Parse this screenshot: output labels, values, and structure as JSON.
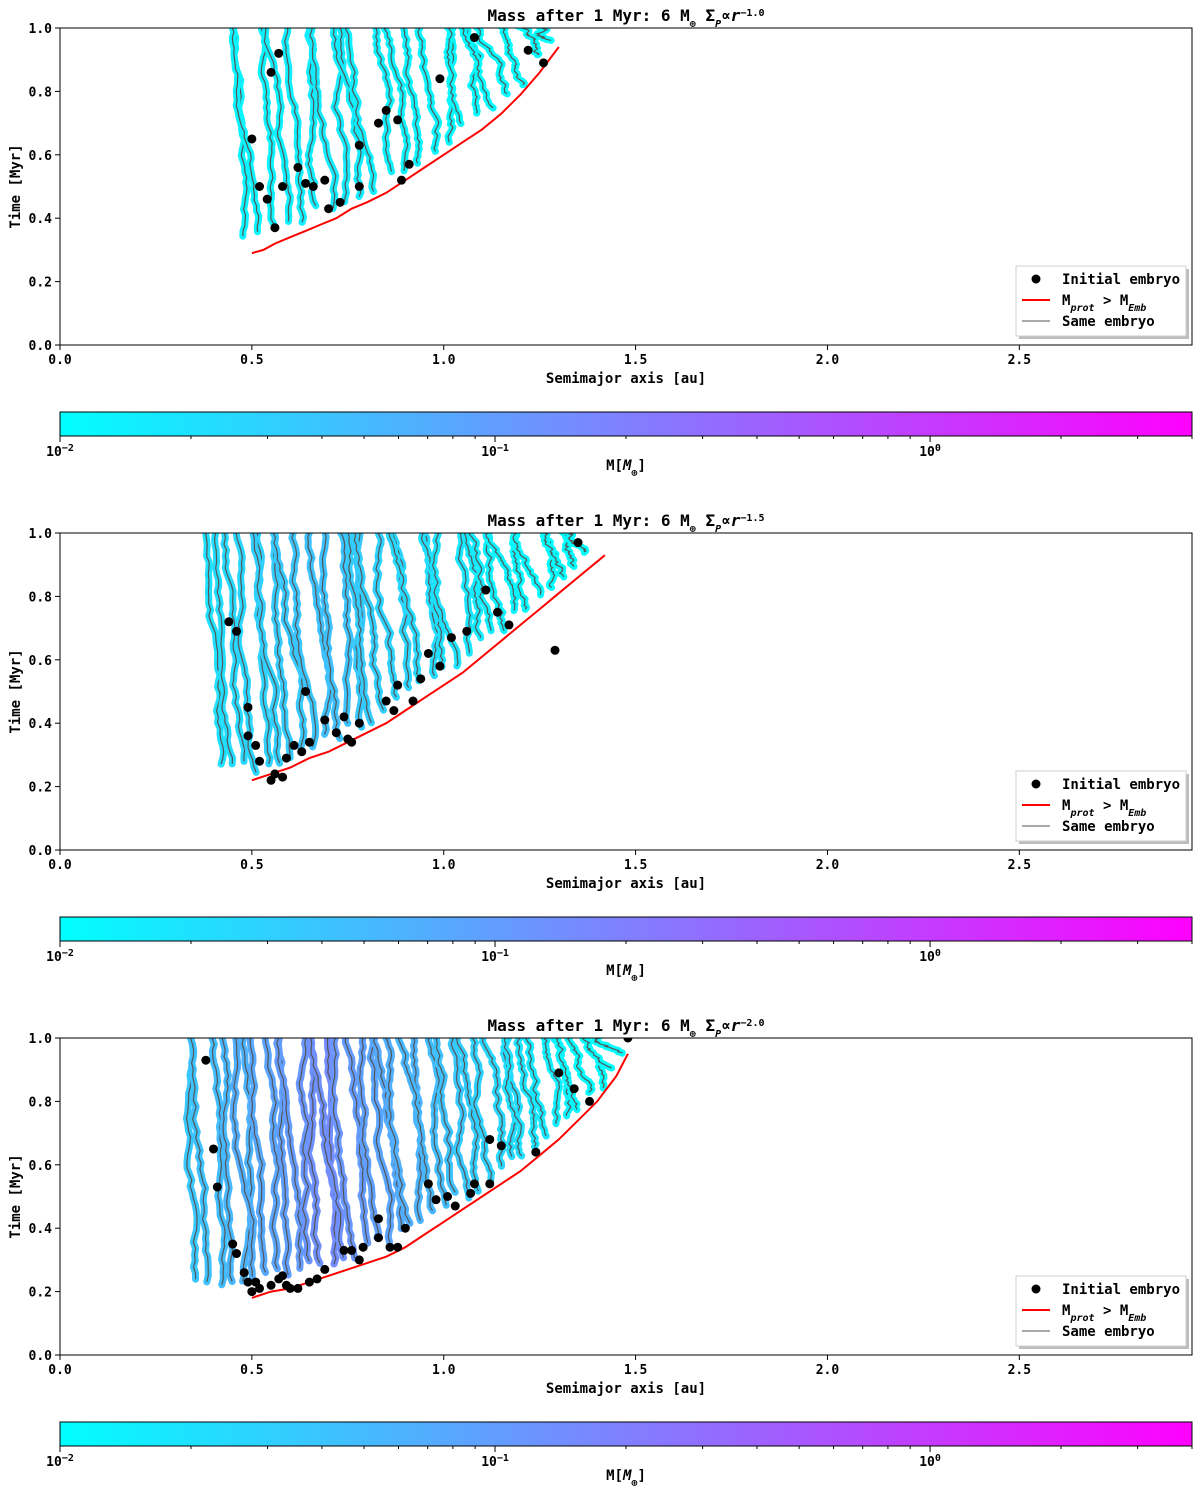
{
  "colors": {
    "cmap_low": "#00ffff",
    "cmap_high": "#ff00ff",
    "threshold_line": "#ff0000",
    "embryo_marker": "#000000",
    "same_embryo_line": "#aaaaaa",
    "track_core": "#555555"
  },
  "chart_data": [
    {
      "type": "scatter",
      "title_main": "Mass after 1 Myr: 6 M",
      "title_sub_symbol": "⊕",
      "title_sigma": "Σ",
      "title_sigma_sub": "P",
      "title_propto": "∝",
      "title_r": "r",
      "title_exp": "−1.0",
      "xlabel": "Semimajor axis [au]",
      "ylabel": "Time [Myr]",
      "xlim": [
        0.0,
        2.95
      ],
      "ylim": [
        0.0,
        1.0
      ],
      "xticks": [
        "0.0",
        "0.5",
        "1.0",
        "1.5",
        "2.0",
        "2.5"
      ],
      "yticks": [
        "0.0",
        "0.2",
        "0.4",
        "0.6",
        "0.8",
        "1.0"
      ],
      "legend": {
        "initial_embryo": "Initial embryo",
        "mprot_main": "M",
        "mprot_sub": "prot",
        "mprot_gt": " > M",
        "memb_sub": "Emb",
        "same_embryo": "Same embryo"
      },
      "threshold_curve": {
        "x": [
          0.5,
          0.53,
          0.56,
          0.6,
          0.64,
          0.68,
          0.72,
          0.76,
          0.8,
          0.85,
          0.9,
          0.95,
          1.0,
          1.05,
          1.1,
          1.15,
          1.2,
          1.25,
          1.3
        ],
        "y": [
          0.29,
          0.3,
          0.32,
          0.34,
          0.36,
          0.38,
          0.4,
          0.43,
          0.45,
          0.48,
          0.52,
          0.56,
          0.6,
          0.64,
          0.68,
          0.73,
          0.79,
          0.86,
          0.94
        ]
      },
      "embryos": [
        {
          "a": 0.5,
          "t": 0.65
        },
        {
          "a": 0.52,
          "t": 0.5
        },
        {
          "a": 0.54,
          "t": 0.46
        },
        {
          "a": 0.55,
          "t": 0.86
        },
        {
          "a": 0.56,
          "t": 0.37
        },
        {
          "a": 0.57,
          "t": 0.92
        },
        {
          "a": 0.58,
          "t": 0.5
        },
        {
          "a": 0.62,
          "t": 0.56
        },
        {
          "a": 0.64,
          "t": 0.51
        },
        {
          "a": 0.66,
          "t": 0.5
        },
        {
          "a": 0.69,
          "t": 0.52
        },
        {
          "a": 0.7,
          "t": 0.43
        },
        {
          "a": 0.73,
          "t": 0.45
        },
        {
          "a": 0.78,
          "t": 0.5
        },
        {
          "a": 0.78,
          "t": 0.63
        },
        {
          "a": 0.83,
          "t": 0.7
        },
        {
          "a": 0.85,
          "t": 0.74
        },
        {
          "a": 0.88,
          "t": 0.71
        },
        {
          "a": 0.89,
          "t": 0.52
        },
        {
          "a": 0.91,
          "t": 0.57
        },
        {
          "a": 0.99,
          "t": 0.84
        },
        {
          "a": 1.08,
          "t": 0.97
        },
        {
          "a": 1.22,
          "t": 0.93
        },
        {
          "a": 1.26,
          "t": 0.89
        }
      ],
      "colorbar": {
        "label_main": "M[",
        "label_sym": "M",
        "label_sub": "⊕",
        "label_close": "]",
        "scale": "log",
        "min": 0.01,
        "max": 4.0,
        "ticks": [
          {
            "base": "10",
            "exp": "−2",
            "value": 0.01
          },
          {
            "base": "10",
            "exp": "−1",
            "value": 0.1
          },
          {
            "base": "10",
            "exp": "0",
            "value": 1.0
          }
        ]
      }
    },
    {
      "type": "scatter",
      "title_main": "Mass after 1 Myr: 6 M",
      "title_sub_symbol": "⊕",
      "title_sigma": "Σ",
      "title_sigma_sub": "P",
      "title_propto": "∝",
      "title_r": "r",
      "title_exp": "−1.5",
      "xlabel": "Semimajor axis [au]",
      "ylabel": "Time [Myr]",
      "xlim": [
        0.0,
        2.95
      ],
      "ylim": [
        0.0,
        1.0
      ],
      "xticks": [
        "0.0",
        "0.5",
        "1.0",
        "1.5",
        "2.0",
        "2.5"
      ],
      "yticks": [
        "0.0",
        "0.2",
        "0.4",
        "0.6",
        "0.8",
        "1.0"
      ],
      "legend": {
        "initial_embryo": "Initial embryo",
        "mprot_main": "M",
        "mprot_sub": "prot",
        "mprot_gt": " > M",
        "memb_sub": "Emb",
        "same_embryo": "Same embryo"
      },
      "threshold_curve": {
        "x": [
          0.5,
          0.55,
          0.6,
          0.65,
          0.7,
          0.75,
          0.8,
          0.85,
          0.9,
          0.95,
          1.0,
          1.05,
          1.1,
          1.15,
          1.2,
          1.25,
          1.3,
          1.35,
          1.42
        ],
        "y": [
          0.22,
          0.24,
          0.26,
          0.29,
          0.31,
          0.34,
          0.37,
          0.4,
          0.44,
          0.48,
          0.52,
          0.56,
          0.61,
          0.66,
          0.71,
          0.76,
          0.81,
          0.86,
          0.93
        ]
      },
      "embryos": [
        {
          "a": 0.44,
          "t": 0.72
        },
        {
          "a": 0.46,
          "t": 0.69
        },
        {
          "a": 0.49,
          "t": 0.45
        },
        {
          "a": 0.49,
          "t": 0.36
        },
        {
          "a": 0.51,
          "t": 0.33
        },
        {
          "a": 0.52,
          "t": 0.28
        },
        {
          "a": 0.55,
          "t": 0.22
        },
        {
          "a": 0.56,
          "t": 0.24
        },
        {
          "a": 0.58,
          "t": 0.23
        },
        {
          "a": 0.59,
          "t": 0.29
        },
        {
          "a": 0.61,
          "t": 0.33
        },
        {
          "a": 0.63,
          "t": 0.31
        },
        {
          "a": 0.64,
          "t": 0.5
        },
        {
          "a": 0.65,
          "t": 0.34
        },
        {
          "a": 0.69,
          "t": 0.41
        },
        {
          "a": 0.72,
          "t": 0.37
        },
        {
          "a": 0.74,
          "t": 0.42
        },
        {
          "a": 0.75,
          "t": 0.35
        },
        {
          "a": 0.76,
          "t": 0.34
        },
        {
          "a": 0.78,
          "t": 0.4
        },
        {
          "a": 0.85,
          "t": 0.47
        },
        {
          "a": 0.87,
          "t": 0.44
        },
        {
          "a": 0.88,
          "t": 0.52
        },
        {
          "a": 0.92,
          "t": 0.47
        },
        {
          "a": 0.94,
          "t": 0.54
        },
        {
          "a": 0.96,
          "t": 0.62
        },
        {
          "a": 0.99,
          "t": 0.58
        },
        {
          "a": 1.02,
          "t": 0.67
        },
        {
          "a": 1.06,
          "t": 0.69
        },
        {
          "a": 1.11,
          "t": 0.82
        },
        {
          "a": 1.14,
          "t": 0.75
        },
        {
          "a": 1.17,
          "t": 0.71
        },
        {
          "a": 1.29,
          "t": 0.63
        },
        {
          "a": 1.35,
          "t": 0.97
        }
      ],
      "colorbar": {
        "label_main": "M[",
        "label_sym": "M",
        "label_sub": "⊕",
        "label_close": "]",
        "scale": "log",
        "min": 0.01,
        "max": 4.0,
        "ticks": [
          {
            "base": "10",
            "exp": "−2",
            "value": 0.01
          },
          {
            "base": "10",
            "exp": "−1",
            "value": 0.1
          },
          {
            "base": "10",
            "exp": "0",
            "value": 1.0
          }
        ]
      }
    },
    {
      "type": "scatter",
      "title_main": "Mass after 1 Myr: 6 M",
      "title_sub_symbol": "⊕",
      "title_sigma": "Σ",
      "title_sigma_sub": "P",
      "title_propto": "∝",
      "title_r": "r",
      "title_exp": "−2.0",
      "xlabel": "Semimajor axis [au]",
      "ylabel": "Time [Myr]",
      "xlim": [
        0.0,
        2.95
      ],
      "ylim": [
        0.0,
        1.0
      ],
      "xticks": [
        "0.0",
        "0.5",
        "1.0",
        "1.5",
        "2.0",
        "2.5"
      ],
      "yticks": [
        "0.0",
        "0.2",
        "0.4",
        "0.6",
        "0.8",
        "1.0"
      ],
      "legend": {
        "initial_embryo": "Initial embryo",
        "mprot_main": "M",
        "mprot_sub": "prot",
        "mprot_gt": " > M",
        "memb_sub": "Emb",
        "same_embryo": "Same embryo"
      },
      "threshold_curve": {
        "x": [
          0.5,
          0.55,
          0.6,
          0.65,
          0.7,
          0.75,
          0.8,
          0.85,
          0.9,
          0.95,
          1.0,
          1.05,
          1.1,
          1.15,
          1.2,
          1.25,
          1.3,
          1.35,
          1.4,
          1.45,
          1.48
        ],
        "y": [
          0.18,
          0.2,
          0.21,
          0.23,
          0.25,
          0.27,
          0.29,
          0.31,
          0.34,
          0.38,
          0.42,
          0.46,
          0.5,
          0.54,
          0.58,
          0.63,
          0.68,
          0.74,
          0.8,
          0.88,
          0.95
        ]
      },
      "embryos": [
        {
          "a": 0.38,
          "t": 0.93
        },
        {
          "a": 0.4,
          "t": 0.65
        },
        {
          "a": 0.41,
          "t": 0.53
        },
        {
          "a": 0.45,
          "t": 0.35
        },
        {
          "a": 0.46,
          "t": 0.32
        },
        {
          "a": 0.48,
          "t": 0.26
        },
        {
          "a": 0.49,
          "t": 0.23
        },
        {
          "a": 0.5,
          "t": 0.2
        },
        {
          "a": 0.51,
          "t": 0.23
        },
        {
          "a": 0.52,
          "t": 0.21
        },
        {
          "a": 0.55,
          "t": 0.22
        },
        {
          "a": 0.57,
          "t": 0.24
        },
        {
          "a": 0.58,
          "t": 0.25
        },
        {
          "a": 0.59,
          "t": 0.22
        },
        {
          "a": 0.6,
          "t": 0.21
        },
        {
          "a": 0.62,
          "t": 0.21
        },
        {
          "a": 0.65,
          "t": 0.23
        },
        {
          "a": 0.67,
          "t": 0.24
        },
        {
          "a": 0.69,
          "t": 0.27
        },
        {
          "a": 0.74,
          "t": 0.33
        },
        {
          "a": 0.76,
          "t": 0.33
        },
        {
          "a": 0.78,
          "t": 0.3
        },
        {
          "a": 0.79,
          "t": 0.34
        },
        {
          "a": 0.83,
          "t": 0.37
        },
        {
          "a": 0.83,
          "t": 0.43
        },
        {
          "a": 0.86,
          "t": 0.34
        },
        {
          "a": 0.88,
          "t": 0.34
        },
        {
          "a": 0.9,
          "t": 0.4
        },
        {
          "a": 0.96,
          "t": 0.54
        },
        {
          "a": 0.98,
          "t": 0.49
        },
        {
          "a": 1.01,
          "t": 0.5
        },
        {
          "a": 1.03,
          "t": 0.47
        },
        {
          "a": 1.07,
          "t": 0.51
        },
        {
          "a": 1.08,
          "t": 0.54
        },
        {
          "a": 1.12,
          "t": 0.54
        },
        {
          "a": 1.12,
          "t": 0.68
        },
        {
          "a": 1.15,
          "t": 0.66
        },
        {
          "a": 1.24,
          "t": 0.64
        },
        {
          "a": 1.3,
          "t": 0.89
        },
        {
          "a": 1.34,
          "t": 0.84
        },
        {
          "a": 1.38,
          "t": 0.8
        },
        {
          "a": 1.48,
          "t": 1.0
        }
      ],
      "colorbar": {
        "label_main": "M[",
        "label_sym": "M",
        "label_sub": "⊕",
        "label_close": "]",
        "scale": "log",
        "min": 0.01,
        "max": 4.0,
        "ticks": [
          {
            "base": "10",
            "exp": "−2",
            "value": 0.01
          },
          {
            "base": "10",
            "exp": "−1",
            "value": 0.1
          },
          {
            "base": "10",
            "exp": "0",
            "value": 1.0
          }
        ]
      }
    }
  ]
}
